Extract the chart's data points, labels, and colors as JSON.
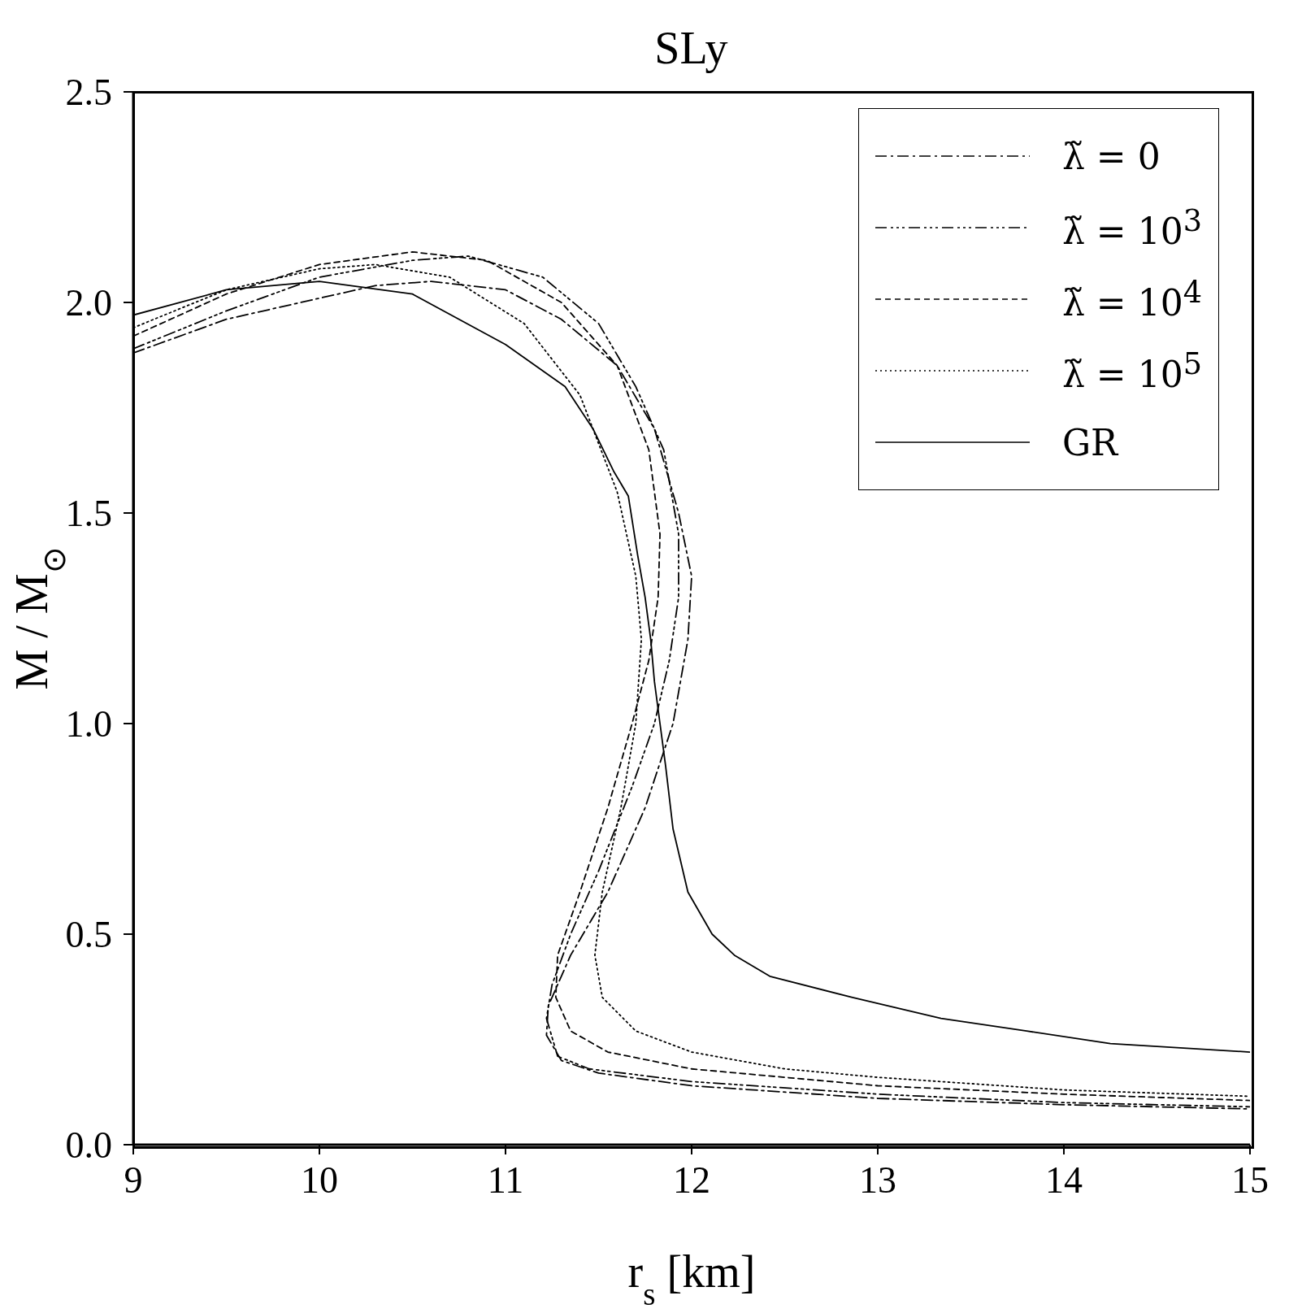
{
  "chart_data": {
    "type": "line",
    "title": "SLy",
    "xlabel": "r$_{s}$ [km]",
    "ylabel": "M / M$_{⊙}$",
    "xlim": [
      9,
      15
    ],
    "xticks": [
      9,
      10,
      11,
      12,
      13,
      14,
      15
    ],
    "ylim": [
      0,
      2.5
    ],
    "yticks": [
      {
        "value": 0,
        "label": "0.0"
      },
      {
        "value": 0.5,
        "label": "0.5"
      },
      {
        "value": 1,
        "label": "1.0"
      },
      {
        "value": 1.5,
        "label": "1.5"
      },
      {
        "value": 2,
        "label": "2.0"
      },
      {
        "value": 2.5,
        "label": "2.5"
      }
    ],
    "legend": "top right",
    "marker": "none",
    "series": [
      {
        "name": "λ̃ = 0",
        "color": "#000000",
        "line_style": "dashed",
        "x": [
          9,
          9.5,
          10,
          10.3,
          10.6,
          11,
          11.3,
          11.6,
          11.8,
          11.93,
          12,
          11.98,
          11.9,
          11.75,
          11.55,
          11.35,
          11.23,
          11.22,
          11.3,
          11.5,
          12,
          13,
          14,
          15
        ],
        "values": [
          1.88,
          1.96,
          2.01,
          2.04,
          2.05,
          2.03,
          1.96,
          1.85,
          1.7,
          1.5,
          1.35,
          1.2,
          1,
          0.8,
          0.6,
          0.45,
          0.33,
          0.26,
          0.2,
          0.17,
          0.14,
          0.11,
          0.095,
          0.085
        ]
      },
      {
        "name": "λ̃ = 10$^{3}$",
        "color": "#000000",
        "line_style": "dashed",
        "x": [
          9,
          9.5,
          10,
          10.5,
          10.8,
          11.2,
          11.5,
          11.7,
          11.85,
          11.93,
          11.93,
          11.88,
          11.8,
          11.68,
          11.5,
          11.35,
          11.25,
          11.22,
          11.28,
          11.45,
          12,
          13,
          14,
          15
        ],
        "values": [
          1.89,
          1.98,
          2.06,
          2.1,
          2.11,
          2.06,
          1.95,
          1.8,
          1.65,
          1.45,
          1.3,
          1.15,
          1,
          0.85,
          0.65,
          0.5,
          0.38,
          0.3,
          0.21,
          0.18,
          0.15,
          0.12,
          0.1,
          0.09
        ]
      },
      {
        "name": "λ̃ = 10$^{4}$",
        "color": "#000000",
        "line_style": "dashed",
        "x": [
          9,
          9.5,
          10,
          10.5,
          10.9,
          11.3,
          11.6,
          11.77,
          11.83,
          11.82,
          11.77,
          11.68,
          11.55,
          11.4,
          11.28,
          11.27,
          11.35,
          11.55,
          12,
          13,
          14,
          15
        ],
        "values": [
          1.92,
          2.02,
          2.09,
          2.12,
          2.1,
          2,
          1.85,
          1.65,
          1.45,
          1.3,
          1.15,
          1,
          0.8,
          0.6,
          0.45,
          0.35,
          0.27,
          0.22,
          0.18,
          0.14,
          0.12,
          0.105
        ]
      },
      {
        "name": "λ̃ = 10$^{5}$",
        "color": "#000000",
        "line_style": "dotted",
        "x": [
          9,
          9.5,
          10,
          10.3,
          10.7,
          11.1,
          11.4,
          11.6,
          11.7,
          11.73,
          11.7,
          11.62,
          11.52,
          11.48,
          11.52,
          11.7,
          12,
          12.5,
          13,
          14,
          15
        ],
        "values": [
          1.94,
          2.03,
          2.08,
          2.09,
          2.06,
          1.95,
          1.78,
          1.55,
          1.35,
          1.2,
          1,
          0.8,
          0.6,
          0.45,
          0.35,
          0.27,
          0.22,
          0.18,
          0.16,
          0.13,
          0.115
        ]
      },
      {
        "name": "GR",
        "color": "#000000",
        "line_style": "solid",
        "x": [
          9,
          9.5,
          10,
          10.5,
          11,
          11.32,
          11.47,
          11.58,
          11.66,
          11.71,
          11.75,
          11.78,
          11.8,
          11.83,
          11.86,
          11.9,
          11.98,
          12.11,
          12.23,
          12.42,
          12.86,
          13.34,
          13.8,
          14.25,
          15
        ],
        "values": [
          1.97,
          2.03,
          2.05,
          2.02,
          1.9,
          1.8,
          1.7,
          1.6,
          1.54,
          1.4,
          1.3,
          1.2,
          1.1,
          1,
          0.9,
          0.75,
          0.6,
          0.5,
          0.45,
          0.4,
          0.35,
          0.3,
          0.27,
          0.24,
          0.22
        ]
      }
    ]
  }
}
